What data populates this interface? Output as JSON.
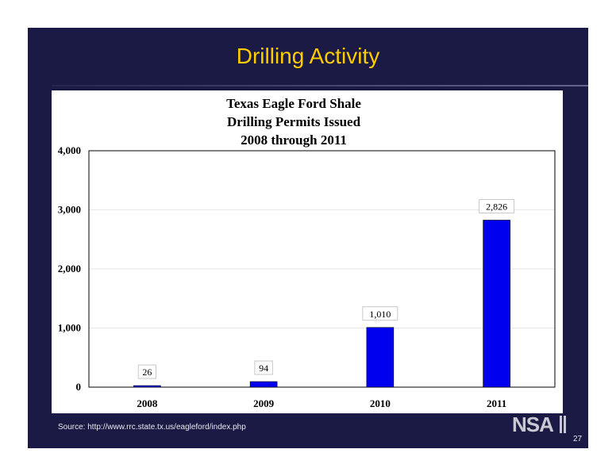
{
  "slide": {
    "title": "Drilling Activity",
    "source": "Source: http://www.rrc.state.tx.us/eagleford/index.php",
    "page_number": "27",
    "logo_text": "NSAI"
  },
  "colors": {
    "background": "#1a1a44",
    "title": "#ffcc00",
    "bar": "#0000ee"
  },
  "chart_data": {
    "type": "bar",
    "title": [
      "Texas Eagle Ford Shale",
      "Drilling Permits Issued",
      "2008 through 2011"
    ],
    "categories": [
      "2008",
      "2009",
      "2010",
      "2011"
    ],
    "values": [
      26,
      94,
      1010,
      2826
    ],
    "data_labels": [
      "26",
      "94",
      "1,010",
      "2,826"
    ],
    "ylim": [
      0,
      4000
    ],
    "yticks": [
      0,
      1000,
      2000,
      3000,
      4000
    ],
    "ytick_labels": [
      "0",
      "1,000",
      "2,000",
      "3,000",
      "4,000"
    ],
    "xlabel": "",
    "ylabel": "",
    "grid": true
  }
}
